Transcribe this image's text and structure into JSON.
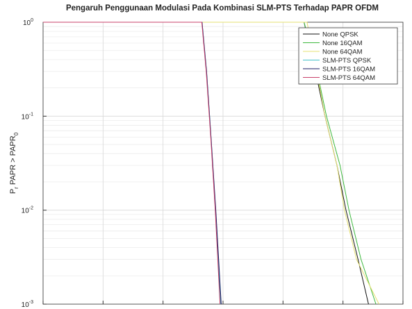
{
  "chart_data": {
    "type": "line",
    "title": "Pengaruh Penggunaan Modulasi Pada Kombinasi SLM-PTS Terhadap PAPR OFDM",
    "ylabel": [
      "P",
      "r",
      " PAPR > PAPR",
      "0"
    ],
    "log_y": true,
    "grid": true,
    "legend": "upper right",
    "xlim": [
      0,
      12
    ],
    "xticks": [
      0,
      2,
      4,
      6,
      8,
      10,
      12
    ],
    "ylim": [
      0.001,
      1
    ],
    "yticks": [
      {
        "value": 0.001,
        "label": "10",
        "exp": "-3"
      },
      {
        "value": 0.01,
        "label": "10",
        "exp": "-2"
      },
      {
        "value": 0.1,
        "label": "10",
        "exp": "-1"
      },
      {
        "value": 1,
        "label": "10",
        "exp": "0"
      }
    ],
    "series": [
      {
        "name": "None QPSK",
        "color": "#111111",
        "x": [
          0,
          8.7,
          9.0,
          9.4,
          9.8,
          10.1,
          10.5,
          10.85
        ],
        "values": [
          1,
          1,
          0.4,
          0.1,
          0.03,
          0.01,
          0.003,
          0.001
        ]
      },
      {
        "name": "None 16QAM",
        "color": "#3cb83c",
        "x": [
          0,
          8.7,
          9.05,
          9.45,
          9.9,
          10.2,
          10.6,
          11.1
        ],
        "values": [
          1,
          1,
          0.4,
          0.1,
          0.03,
          0.01,
          0.003,
          0.001
        ]
      },
      {
        "name": "None 64QAM",
        "color": "#e6e070",
        "x": [
          0,
          8.8,
          9.05,
          9.4,
          9.8,
          10.05,
          10.45,
          11.2
        ],
        "values": [
          1,
          1,
          0.4,
          0.1,
          0.03,
          0.01,
          0.003,
          0.001
        ]
      },
      {
        "name": "SLM-PTS QPSK",
        "color": "#40c0c8",
        "x": [
          0,
          5.3,
          5.45,
          5.6,
          5.75,
          5.92
        ],
        "values": [
          1,
          1,
          0.3,
          0.06,
          0.01,
          0.001
        ]
      },
      {
        "name": "SLM-PTS 16QAM",
        "color": "#1a1a60",
        "x": [
          0,
          5.3,
          5.45,
          5.6,
          5.76,
          5.94
        ],
        "values": [
          1,
          1,
          0.3,
          0.06,
          0.01,
          0.001
        ]
      },
      {
        "name": "SLM-PTS 64QAM",
        "color": "#c8406a",
        "x": [
          0,
          5.29,
          5.44,
          5.59,
          5.74,
          5.9
        ],
        "values": [
          1,
          1,
          0.3,
          0.06,
          0.01,
          0.001
        ]
      }
    ]
  }
}
